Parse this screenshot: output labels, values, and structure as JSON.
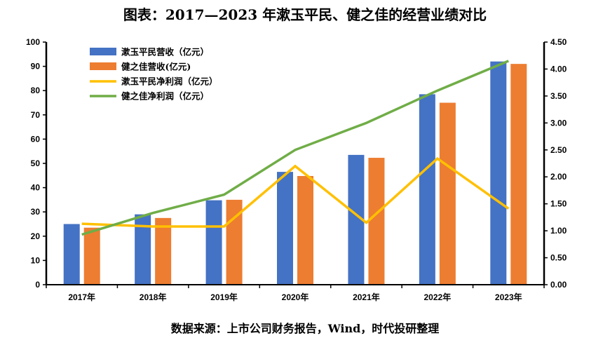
{
  "chart_data": {
    "type": "bar",
    "title": "图表：2017—2023 年漱玉平民、健之佳的经营业绩对比",
    "source": "数据来源：上市公司财务报告，Wind，时代投研整理",
    "categories": [
      "2017年",
      "2018年",
      "2019年",
      "2020年",
      "2021年",
      "2022年",
      "2023年"
    ],
    "left_axis": {
      "ylim": [
        0,
        100
      ],
      "ticks": [
        "0",
        "10",
        "20",
        "30",
        "40",
        "50",
        "60",
        "70",
        "80",
        "90",
        "100"
      ]
    },
    "right_axis": {
      "ylim": [
        0,
        4.5
      ],
      "ticks": [
        "0.00",
        "0.50",
        "1.00",
        "1.50",
        "2.00",
        "2.50",
        "3.00",
        "3.50",
        "4.00",
        "4.50"
      ]
    },
    "series": [
      {
        "name": "漱玉平民营收（亿元）",
        "kind": "bar",
        "axis": "left",
        "color": "#4472C4",
        "values": [
          25,
          29,
          34.8,
          46.5,
          53.5,
          78.5,
          92
        ]
      },
      {
        "name": "健之佳营收(亿元)",
        "kind": "bar",
        "axis": "left",
        "color": "#ED7D31",
        "values": [
          23.5,
          27.5,
          35,
          44.8,
          52.3,
          75,
          91
        ]
      },
      {
        "name": "漱玉平民净利润（亿元）",
        "kind": "line",
        "axis": "right",
        "color": "#FFC000",
        "values": [
          1.13,
          1.08,
          1.08,
          2.2,
          1.15,
          2.34,
          1.41
        ]
      },
      {
        "name": "健之佳净利润（亿元）",
        "kind": "line",
        "axis": "right",
        "color": "#70AD47",
        "values": [
          0.93,
          1.33,
          1.67,
          2.5,
          3.0,
          3.6,
          4.15
        ]
      }
    ],
    "legend_position": "top-left",
    "grid": false
  }
}
